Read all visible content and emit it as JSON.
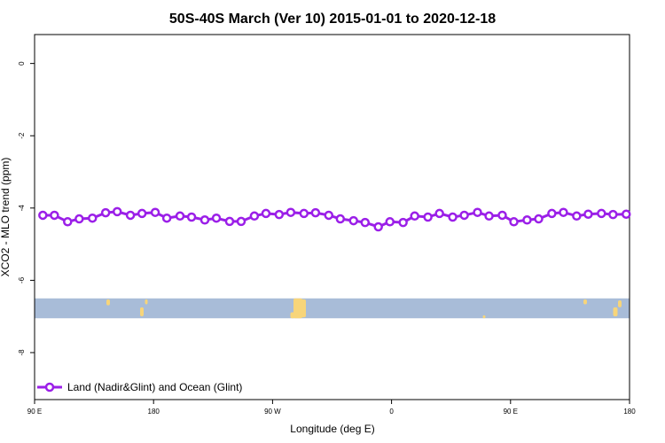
{
  "chart_data": {
    "type": "line",
    "title": "50S-40S March (Ver 10)   2015-01-01 to 2020-12-18",
    "xlabel": "Longitude (deg E)",
    "ylabel": "XCO2 - MLO trend (ppm)",
    "xlim": [
      90,
      450
    ],
    "ylim": [
      -9.3,
      0.8
    ],
    "x_ticks": [
      {
        "value": 90,
        "label": "90 E"
      },
      {
        "value": 162,
        "label": "180"
      },
      {
        "value": 234,
        "label": "90 W"
      },
      {
        "value": 306,
        "label": "0"
      },
      {
        "value": 378,
        "label": "90 E"
      },
      {
        "value": 450,
        "label": "180"
      }
    ],
    "y_ticks": [
      {
        "value": 0,
        "label": "0"
      },
      {
        "value": -2,
        "label": "-2"
      },
      {
        "value": -4,
        "label": "-4"
      },
      {
        "value": -6,
        "label": "-6"
      },
      {
        "value": -8,
        "label": "-8"
      }
    ],
    "grid": false,
    "legend_position": "bottom-left",
    "series": [
      {
        "name": "Land (Nadir&Glint) and Ocean (Glint)",
        "color": "#9b1fe8",
        "x": [
          95,
          102,
          110,
          117,
          125,
          133,
          140,
          148,
          155,
          163,
          170,
          178,
          185,
          193,
          200,
          208,
          215,
          223,
          230,
          238,
          245,
          253,
          260,
          268,
          275,
          283,
          290,
          298,
          305,
          313,
          320,
          328,
          335,
          343,
          350,
          358,
          365,
          373,
          380,
          388,
          395,
          403,
          410,
          418,
          425,
          433,
          440,
          448
        ],
        "values": [
          -4.2,
          -4.2,
          -4.38,
          -4.3,
          -4.28,
          -4.13,
          -4.1,
          -4.2,
          -4.15,
          -4.12,
          -4.28,
          -4.22,
          -4.25,
          -4.33,
          -4.28,
          -4.37,
          -4.37,
          -4.22,
          -4.15,
          -4.18,
          -4.12,
          -4.15,
          -4.13,
          -4.2,
          -4.3,
          -4.35,
          -4.4,
          -4.52,
          -4.38,
          -4.4,
          -4.22,
          -4.25,
          -4.15,
          -4.25,
          -4.2,
          -4.12,
          -4.22,
          -4.2,
          -4.38,
          -4.33,
          -4.3,
          -4.15,
          -4.12,
          -4.22,
          -4.17,
          -4.15,
          -4.18,
          -4.17
        ]
      }
    ],
    "background_band": {
      "y_top": -6.5,
      "y_bottom": -7.05,
      "ocean_color": "#a8bcd8",
      "land_color": "#f7d57a"
    }
  }
}
